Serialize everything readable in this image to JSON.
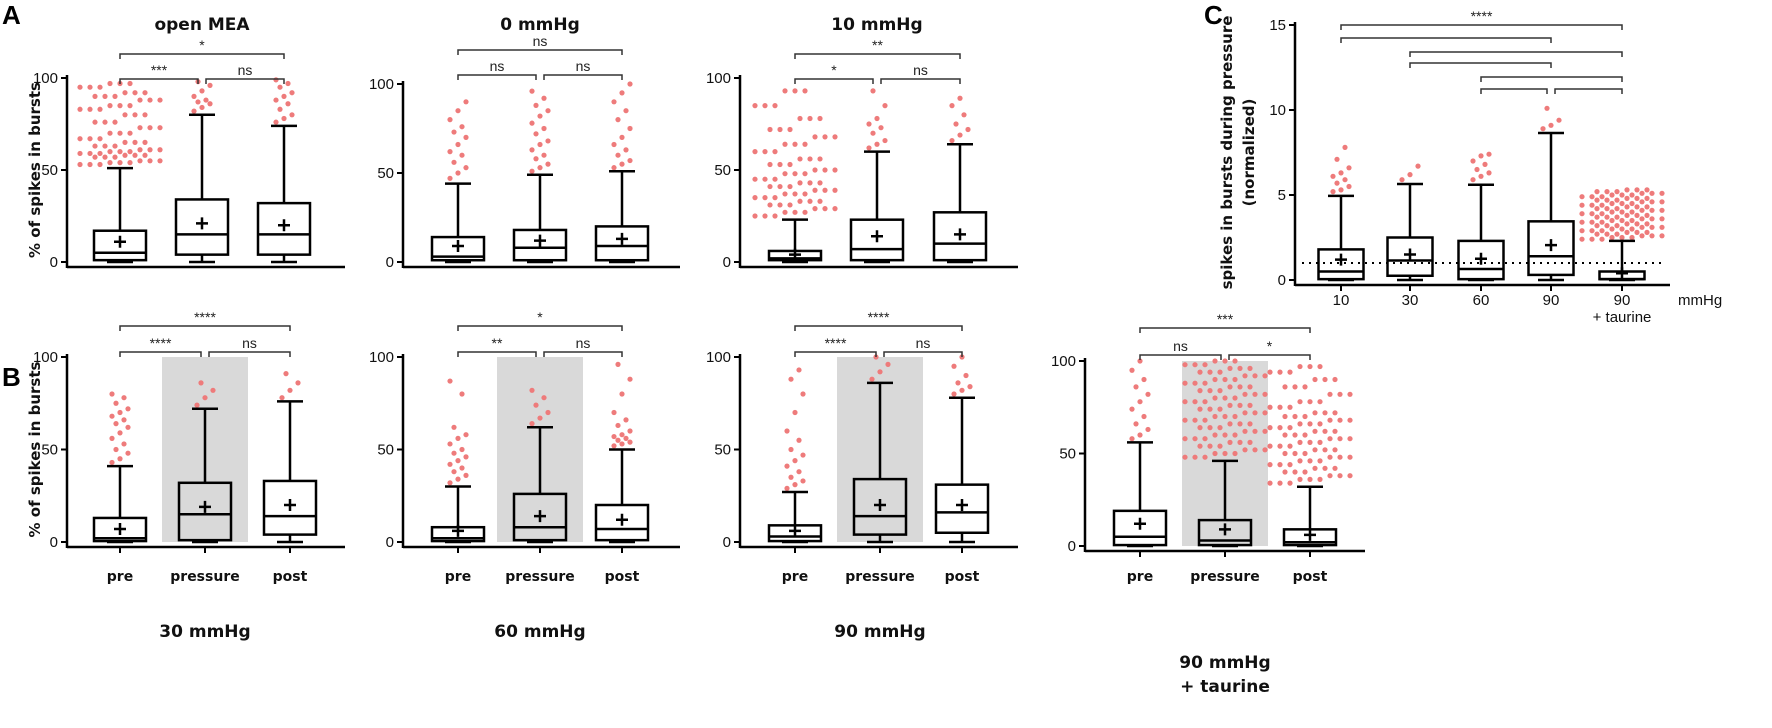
{
  "panel_labels": {
    "A": "A",
    "B": "B",
    "C": "C"
  },
  "colors": {
    "outlier": "#ee7b7b",
    "shade": "#d9d9d9",
    "ink": "#000000"
  },
  "chart_data": [
    {
      "id": "open_mea",
      "type": "box",
      "title": "open MEA",
      "ylabel": "% of spikes in bursts",
      "ylim": [
        0,
        100
      ],
      "yticks": [
        0,
        50,
        100
      ],
      "categories": [
        "pre",
        "pressure",
        "post"
      ],
      "show_categories": false,
      "shaded": [],
      "boxes": [
        {
          "min": 0,
          "q1": 1,
          "median": 5,
          "q3": 17,
          "max": 51,
          "mean": 11,
          "outliers": [
            53,
            54,
            55,
            57,
            58,
            59,
            60,
            61,
            63,
            65,
            67,
            70,
            73,
            76,
            80,
            83,
            85,
            88,
            90,
            92,
            95,
            97
          ]
        },
        {
          "min": 0,
          "q1": 4,
          "median": 15,
          "q3": 34,
          "max": 80,
          "mean": 21,
          "outliers": [
            82,
            84,
            86,
            87,
            88,
            90,
            93,
            96,
            98
          ]
        },
        {
          "min": 0,
          "q1": 4,
          "median": 15,
          "q3": 32,
          "max": 74,
          "mean": 20,
          "outliers": [
            76,
            78,
            80,
            83,
            86,
            88,
            90,
            92,
            95,
            97,
            99
          ]
        }
      ],
      "comparisons": [
        {
          "groups": [
            0,
            1
          ],
          "label": "***"
        },
        {
          "groups": [
            1,
            2
          ],
          "label": "ns"
        },
        {
          "groups": [
            0,
            2
          ],
          "label": "*"
        }
      ]
    },
    {
      "id": "0mmhg",
      "type": "box",
      "title": "0 mmHg",
      "ylabel": "",
      "ylim": [
        0,
        100
      ],
      "yticks": [
        0,
        50,
        100
      ],
      "categories": [
        "pre",
        "pressure",
        "post"
      ],
      "show_categories": false,
      "shaded": [],
      "boxes": [
        {
          "min": 0,
          "q1": 1,
          "median": 3,
          "q3": 14,
          "max": 44,
          "mean": 9,
          "outliers": [
            47,
            50,
            53,
            56,
            60,
            62,
            66,
            70,
            73,
            76,
            80,
            85,
            90
          ]
        },
        {
          "min": 0,
          "q1": 1,
          "median": 8,
          "q3": 18,
          "max": 49,
          "mean": 12,
          "outliers": [
            51,
            53,
            55,
            58,
            60,
            63,
            66,
            68,
            72,
            75,
            78,
            82,
            85,
            88,
            92,
            96
          ]
        },
        {
          "min": 0,
          "q1": 1,
          "median": 9,
          "q3": 20,
          "max": 51,
          "mean": 13,
          "outliers": [
            53,
            55,
            57,
            60,
            63,
            66,
            70,
            75,
            80,
            85,
            90,
            95,
            100
          ]
        }
      ],
      "comparisons": [
        {
          "groups": [
            0,
            1
          ],
          "label": "ns"
        },
        {
          "groups": [
            1,
            2
          ],
          "label": "ns"
        },
        {
          "groups": [
            0,
            2
          ],
          "label": "ns"
        }
      ]
    },
    {
      "id": "10mmhg",
      "type": "box",
      "title": "10 mmHg",
      "ylabel": "",
      "ylim": [
        0,
        100
      ],
      "yticks": [
        0,
        50,
        100
      ],
      "categories": [
        "pre",
        "pressure",
        "post"
      ],
      "show_categories": false,
      "shaded": [],
      "boxes": [
        {
          "min": 0,
          "q1": 1,
          "median": 2,
          "q3": 6,
          "max": 23,
          "mean": 4,
          "outliers": [
            25,
            27,
            29,
            31,
            33,
            35,
            37,
            39,
            41,
            43,
            45,
            48,
            50,
            53,
            56,
            60,
            64,
            68,
            72,
            78,
            85,
            93
          ]
        },
        {
          "min": 0,
          "q1": 1,
          "median": 7,
          "q3": 23,
          "max": 60,
          "mean": 14,
          "outliers": [
            62,
            64,
            66,
            70,
            73,
            75,
            78,
            85,
            93
          ]
        },
        {
          "min": 0,
          "q1": 1,
          "median": 10,
          "q3": 27,
          "max": 64,
          "mean": 15,
          "outliers": [
            66,
            69,
            72,
            75,
            80,
            85,
            89
          ]
        }
      ],
      "comparisons": [
        {
          "groups": [
            0,
            1
          ],
          "label": "*"
        },
        {
          "groups": [
            1,
            2
          ],
          "label": "ns"
        },
        {
          "groups": [
            0,
            2
          ],
          "label": "**"
        }
      ]
    },
    {
      "id": "normalized",
      "type": "box",
      "title": "",
      "ylabel": "spikes in bursts during pressure",
      "ylabel2": "(normalized)",
      "ylim": [
        0,
        15
      ],
      "yticks": [
        0,
        5,
        10,
        15
      ],
      "categories": [
        "10",
        "30",
        "60",
        "90",
        "90"
      ],
      "category_sub": [
        "",
        "",
        "",
        "",
        "+ taurine"
      ],
      "x_unit": "mmHg",
      "show_categories": true,
      "shaded": [],
      "reference_line": 1,
      "boxes": [
        {
          "min": 0,
          "q1": 0.05,
          "median": 0.5,
          "q3": 1.8,
          "max": 4.95,
          "mean": 1.2,
          "outliers": [
            5.2,
            5.3,
            5.5,
            5.7,
            5.9,
            6.1,
            6.3,
            6.6,
            7.1,
            7.8
          ]
        },
        {
          "min": 0,
          "q1": 0.25,
          "median": 1.15,
          "q3": 2.5,
          "max": 5.65,
          "mean": 1.5,
          "outliers": [
            5.9,
            6.2,
            6.7
          ]
        },
        {
          "min": 0,
          "q1": 0.05,
          "median": 0.65,
          "q3": 2.3,
          "max": 5.6,
          "mean": 1.25,
          "outliers": [
            5.9,
            6.1,
            6.3,
            6.5,
            6.8,
            7.0,
            7.3,
            7.4
          ]
        },
        {
          "min": 0,
          "q1": 0.3,
          "median": 1.4,
          "q3": 3.45,
          "max": 8.65,
          "mean": 2.05,
          "outliers": [
            8.9,
            9.1,
            9.4,
            10.1
          ]
        },
        {
          "min": 0,
          "q1": 0.05,
          "median": 0.05,
          "q3": 0.5,
          "max": 2.3,
          "mean": 0.4,
          "outliers": [
            2.4,
            2.5,
            2.6,
            2.7,
            2.8,
            2.9,
            3.0,
            3.1,
            3.2,
            3.3,
            3.4,
            3.5,
            3.6,
            3.7,
            3.8,
            3.9,
            4.0,
            4.1,
            4.2,
            4.3,
            4.4,
            4.5,
            4.6,
            4.7,
            4.8,
            4.9,
            5.0,
            5.1,
            5.2,
            5.3
          ]
        }
      ],
      "comparisons": [
        {
          "groups": [
            0,
            4
          ],
          "label": "****"
        },
        {
          "groups": [
            0,
            3
          ],
          "label": ""
        },
        {
          "groups": [
            1,
            4
          ],
          "label": ""
        },
        {
          "groups": [
            1,
            3
          ],
          "label": ""
        },
        {
          "groups": [
            2,
            4
          ],
          "label": ""
        },
        {
          "groups": [
            2,
            3
          ],
          "label": ""
        },
        {
          "groups": [
            3,
            4
          ],
          "label": ""
        }
      ]
    },
    {
      "id": "30mmhg",
      "type": "box",
      "title": "30 mmHg",
      "ylabel": "% of spikes in bursts",
      "ylim": [
        0,
        100
      ],
      "yticks": [
        0,
        50,
        100
      ],
      "categories": [
        "pre",
        "pressure",
        "post"
      ],
      "show_categories": true,
      "shaded": [
        1
      ],
      "boxes": [
        {
          "min": 0,
          "q1": 0.5,
          "median": 2,
          "q3": 13,
          "max": 41,
          "mean": 7,
          "outliers": [
            43,
            45,
            48,
            50,
            53,
            56,
            59,
            62,
            64,
            66,
            68,
            70,
            72,
            75,
            78,
            80
          ]
        },
        {
          "min": 0,
          "q1": 1,
          "median": 15,
          "q3": 32,
          "max": 72,
          "mean": 19,
          "outliers": [
            74,
            78,
            82,
            86
          ]
        },
        {
          "min": 0,
          "q1": 4,
          "median": 14,
          "q3": 33,
          "max": 76,
          "mean": 20,
          "outliers": [
            78,
            82,
            86,
            91
          ]
        }
      ],
      "comparisons": [
        {
          "groups": [
            0,
            1
          ],
          "label": "****"
        },
        {
          "groups": [
            1,
            2
          ],
          "label": "ns"
        },
        {
          "groups": [
            0,
            2
          ],
          "label": "****"
        }
      ]
    },
    {
      "id": "60mmhg",
      "type": "box",
      "title": "60 mmHg",
      "ylabel": "",
      "ylim": [
        0,
        100
      ],
      "yticks": [
        0,
        50,
        100
      ],
      "categories": [
        "pre",
        "pressure",
        "post"
      ],
      "show_categories": true,
      "shaded": [
        1
      ],
      "boxes": [
        {
          "min": 0,
          "q1": 0.5,
          "median": 2,
          "q3": 8,
          "max": 30,
          "mean": 6,
          "outliers": [
            32,
            34,
            36,
            38,
            40,
            42,
            44,
            46,
            48,
            50,
            53,
            56,
            58,
            62,
            80,
            87
          ]
        },
        {
          "min": 0,
          "q1": 1,
          "median": 8,
          "q3": 26,
          "max": 62,
          "mean": 14,
          "outliers": [
            64,
            67,
            70,
            74,
            78,
            82
          ]
        },
        {
          "min": 0,
          "q1": 1,
          "median": 7,
          "q3": 20,
          "max": 50,
          "mean": 12,
          "outliers": [
            52,
            53,
            54,
            55,
            56,
            57,
            58,
            60,
            63,
            66,
            70,
            80,
            88,
            96
          ]
        }
      ],
      "comparisons": [
        {
          "groups": [
            0,
            1
          ],
          "label": "**"
        },
        {
          "groups": [
            1,
            2
          ],
          "label": "ns"
        },
        {
          "groups": [
            0,
            2
          ],
          "label": "*"
        }
      ]
    },
    {
      "id": "90mmhg",
      "type": "box",
      "title": "90 mmHg",
      "ylabel": "",
      "ylim": [
        0,
        100
      ],
      "yticks": [
        0,
        50,
        100
      ],
      "categories": [
        "pre",
        "pressure",
        "post"
      ],
      "show_categories": true,
      "shaded": [
        1
      ],
      "boxes": [
        {
          "min": 0,
          "q1": 0.5,
          "median": 3,
          "q3": 9,
          "max": 27,
          "mean": 6,
          "outliers": [
            29,
            31,
            33,
            35,
            38,
            41,
            44,
            47,
            50,
            55,
            60,
            70,
            80,
            88,
            93
          ]
        },
        {
          "min": 0,
          "q1": 4,
          "median": 14,
          "q3": 34,
          "max": 86,
          "mean": 20,
          "outliers": [
            88,
            92,
            96,
            100
          ]
        },
        {
          "min": 0,
          "q1": 5,
          "median": 16,
          "q3": 31,
          "max": 78,
          "mean": 20,
          "outliers": [
            80,
            82,
            84,
            86,
            90,
            95,
            100
          ]
        }
      ],
      "comparisons": [
        {
          "groups": [
            0,
            1
          ],
          "label": "****"
        },
        {
          "groups": [
            1,
            2
          ],
          "label": "ns"
        },
        {
          "groups": [
            0,
            2
          ],
          "label": "****"
        }
      ]
    },
    {
      "id": "90mmhg_taurine",
      "type": "box",
      "title": "90 mmHg",
      "title2": "+ taurine",
      "ylabel": "",
      "ylim": [
        0,
        100
      ],
      "yticks": [
        0,
        50,
        100
      ],
      "categories": [
        "pre",
        "pressure",
        "post"
      ],
      "show_categories": true,
      "shaded": [
        1
      ],
      "boxes": [
        {
          "min": 0,
          "q1": 0.5,
          "median": 5,
          "q3": 19,
          "max": 56,
          "mean": 12,
          "outliers": [
            58,
            60,
            63,
            66,
            70,
            74,
            78,
            82,
            86,
            90,
            95,
            100
          ]
        },
        {
          "min": 0,
          "q1": 0.5,
          "median": 3,
          "q3": 14,
          "max": 46,
          "mean": 9,
          "outliers": [
            48,
            50,
            52,
            54,
            56,
            58,
            60,
            62,
            64,
            66,
            68,
            70,
            72,
            74,
            76,
            78,
            80,
            82,
            84,
            86,
            88,
            90,
            92,
            94,
            96,
            98,
            100
          ]
        },
        {
          "min": 0,
          "q1": 0.5,
          "median": 2,
          "q3": 9,
          "max": 32,
          "mean": 6,
          "outliers": [
            34,
            36,
            38,
            40,
            42,
            44,
            46,
            48,
            50,
            52,
            54,
            56,
            58,
            60,
            62,
            64,
            66,
            68,
            70,
            72,
            75,
            78,
            82,
            86,
            90,
            94,
            97
          ]
        }
      ],
      "comparisons": [
        {
          "groups": [
            0,
            1
          ],
          "label": "ns"
        },
        {
          "groups": [
            1,
            2
          ],
          "label": "*"
        },
        {
          "groups": [
            0,
            2
          ],
          "label": "***"
        }
      ]
    }
  ]
}
